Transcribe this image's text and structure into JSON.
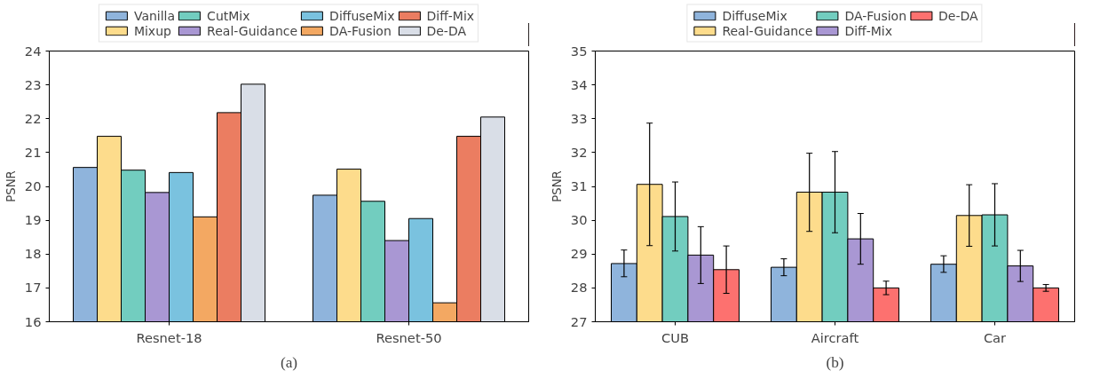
{
  "chart_data": [
    {
      "type": "bar",
      "ylabel": "PSNR",
      "categories": [
        "Resnet-18",
        "Resnet-50"
      ],
      "ylim": [
        16,
        24
      ],
      "yticks": [
        16,
        17,
        18,
        19,
        20,
        21,
        22,
        23,
        24
      ],
      "grid": false,
      "legend": "top",
      "annotations": [
        "(a)"
      ],
      "series": [
        {
          "name": "Vanilla",
          "color": "#8fb4dc",
          "values": [
            20.56,
            19.74
          ]
        },
        {
          "name": "Mixup",
          "color": "#fddc8c",
          "values": [
            21.48,
            20.51
          ]
        },
        {
          "name": "CutMix",
          "color": "#72cdbf",
          "values": [
            20.48,
            19.56
          ]
        },
        {
          "name": "Real-Guidance",
          "color": "#a997d3",
          "values": [
            19.82,
            18.4
          ]
        },
        {
          "name": "DiffuseMix",
          "color": "#7ac2df",
          "values": [
            20.41,
            19.05
          ]
        },
        {
          "name": "DA-Fusion",
          "color": "#f3a862",
          "values": [
            19.1,
            16.56
          ]
        },
        {
          "name": "Diff-Mix",
          "color": "#eb7d61",
          "values": [
            22.18,
            21.48
          ]
        },
        {
          "name": "De-DA",
          "color": "#d9dee7",
          "values": [
            23.02,
            22.05
          ]
        }
      ]
    },
    {
      "type": "bar",
      "ylabel": "PSNR",
      "categories": [
        "CUB",
        "Aircraft",
        "Car"
      ],
      "ylim": [
        27,
        35
      ],
      "yticks": [
        27,
        28,
        29,
        30,
        31,
        32,
        33,
        34,
        35
      ],
      "grid": false,
      "legend": "top",
      "annotations": [
        "(b)"
      ],
      "series": [
        {
          "name": "DiffuseMix",
          "color": "#8fb4dc",
          "values": [
            28.72,
            28.61,
            28.7
          ],
          "errors": [
            [
              28.33,
              29.12
            ],
            [
              28.36,
              28.86
            ],
            [
              28.46,
              28.95
            ]
          ]
        },
        {
          "name": "Real-Guidance",
          "color": "#fddc8c",
          "values": [
            31.06,
            30.83,
            30.14
          ],
          "errors": [
            [
              29.25,
              32.87
            ],
            [
              29.67,
              31.98
            ],
            [
              29.23,
              31.05
            ]
          ]
        },
        {
          "name": "DA-Fusion",
          "color": "#72cdbf",
          "values": [
            30.11,
            30.83,
            30.16
          ],
          "errors": [
            [
              29.09,
              31.13
            ],
            [
              29.63,
              32.03
            ],
            [
              29.24,
              31.08
            ]
          ]
        },
        {
          "name": "Diff-Mix",
          "color": "#a997d3",
          "values": [
            28.97,
            29.45,
            28.65
          ],
          "errors": [
            [
              28.13,
              29.81
            ],
            [
              28.7,
              30.2
            ],
            [
              28.19,
              29.11
            ]
          ]
        },
        {
          "name": "De-DA",
          "color": "#fd716f",
          "values": [
            28.54,
            28.0,
            28.0
          ],
          "errors": [
            [
              27.84,
              29.24
            ],
            [
              27.8,
              28.2
            ],
            [
              27.9,
              28.1
            ]
          ]
        }
      ]
    }
  ]
}
